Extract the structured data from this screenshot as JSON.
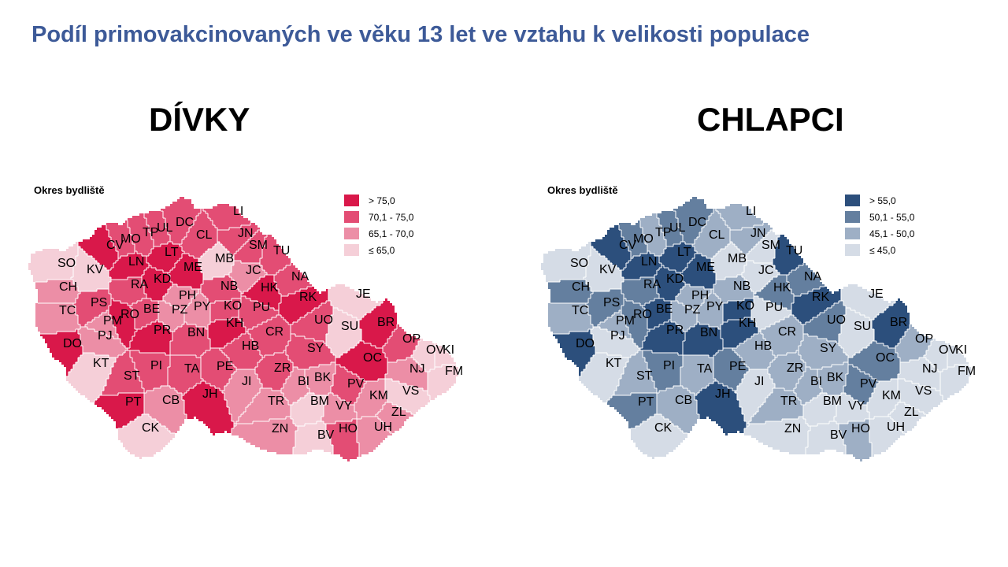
{
  "title": "Podíl primovakcinovaných ve věku 13 let ve vztahu k velikosti populace",
  "panels": [
    {
      "heading": "DÍVKY",
      "map_label": "Okres bydliště",
      "legend": [
        {
          "label": "> 75,0",
          "color": "#d9184a"
        },
        {
          "label": "70,1 - 75,0",
          "color": "#e34d74"
        },
        {
          "label": "65,1 - 70,0",
          "color": "#ec8ea6"
        },
        {
          "label": "≤ 65,0",
          "color": "#f5cfd8"
        }
      ]
    },
    {
      "heading": "CHLAPCI",
      "map_label": "Okres bydliště",
      "legend": [
        {
          "label": "> 55,0",
          "color": "#2c4f7c"
        },
        {
          "label": "50,1 - 55,0",
          "color": "#647f9f"
        },
        {
          "label": "45,1 - 50,0",
          "color": "#9eafc5"
        },
        {
          "label": "≤ 45,0",
          "color": "#d5dce6"
        }
      ]
    }
  ],
  "districts": [
    "SO",
    "KV",
    "CV",
    "MO",
    "TP",
    "UL",
    "DC",
    "LI",
    "CL",
    "JN",
    "SM",
    "LT",
    "LN",
    "ME",
    "MB",
    "JC",
    "TU",
    "CH",
    "RA",
    "KD",
    "PH",
    "NB",
    "HK",
    "NA",
    "RK",
    "JE",
    "PS",
    "BE",
    "PZ",
    "PY",
    "KO",
    "PU",
    "TC",
    "RO",
    "PM",
    "PJ",
    "PR",
    "BN",
    "KH",
    "CR",
    "UO",
    "SU",
    "BR",
    "OP",
    "DO",
    "HB",
    "SY",
    "OV",
    "KI",
    "OC",
    "NJ",
    "FM",
    "KT",
    "ST",
    "PI",
    "TA",
    "PE",
    "ZR",
    "JI",
    "BI",
    "BK",
    "PV",
    "KM",
    "VS",
    "PT",
    "CB",
    "JH",
    "TR",
    "BM",
    "VY",
    "ZL",
    "CK",
    "ZN",
    "BV",
    "HO",
    "UH"
  ],
  "classes": {
    "divky": {
      "SO": 4,
      "KV": 4,
      "CV": 1,
      "MO": 2,
      "TP": 2,
      "UL": 2,
      "DC": 2,
      "LI": 2,
      "CL": 2,
      "JN": 2,
      "SM": 2,
      "LT": 1,
      "LN": 1,
      "ME": 1,
      "MB": 4,
      "JC": 3,
      "TU": 2,
      "CH": 3,
      "RA": 2,
      "KD": 1,
      "PH": 3,
      "NB": 2,
      "HK": 1,
      "NA": 2,
      "RK": 1,
      "JE": 4,
      "PS": 2,
      "BE": 2,
      "PZ": 3,
      "PY": 3,
      "KO": 2,
      "PU": 2,
      "TC": 3,
      "RO": 1,
      "PM": 3,
      "PJ": 3,
      "PR": 1,
      "BN": 2,
      "KH": 1,
      "CR": 2,
      "UO": 2,
      "SU": 4,
      "BR": 1,
      "OP": 2,
      "DO": 1,
      "HB": 2,
      "SY": 2,
      "OV": 4,
      "KI": 4,
      "OC": 1,
      "NJ": 3,
      "FM": 4,
      "KT": 4,
      "ST": 2,
      "PI": 2,
      "TA": 2,
      "PE": 2,
      "ZR": 2,
      "JI": 3,
      "BI": 3,
      "BK": 3,
      "PV": 2,
      "KM": 3,
      "VS": 4,
      "PT": 1,
      "CB": 3,
      "JH": 1,
      "TR": 3,
      "BM": 4,
      "VY": 3,
      "ZL": 3,
      "CK": 4,
      "ZN": 3,
      "BV": 4,
      "HO": 2,
      "UH": 3
    },
    "chlapci": {
      "SO": 4,
      "KV": 4,
      "CV": 1,
      "MO": 2,
      "TP": 3,
      "UL": 2,
      "DC": 2,
      "LI": 3,
      "CL": 3,
      "JN": 3,
      "SM": 4,
      "LT": 1,
      "LN": 1,
      "ME": 1,
      "MB": 4,
      "JC": 4,
      "TU": 1,
      "CH": 2,
      "RA": 2,
      "KD": 1,
      "PH": 3,
      "NB": 3,
      "HK": 2,
      "NA": 2,
      "RK": 1,
      "JE": 4,
      "PS": 2,
      "BE": 1,
      "PZ": 3,
      "PY": 3,
      "KO": 1,
      "PU": 4,
      "TC": 3,
      "RO": 2,
      "PM": 3,
      "PJ": 4,
      "PR": 1,
      "BN": 1,
      "KH": 1,
      "CR": 3,
      "UO": 2,
      "SU": 4,
      "BR": 1,
      "OP": 3,
      "DO": 1,
      "HB": 3,
      "SY": 3,
      "OV": 4,
      "KI": 4,
      "OC": 2,
      "NJ": 4,
      "FM": 4,
      "KT": 4,
      "ST": 3,
      "PI": 2,
      "TA": 3,
      "PE": 2,
      "ZR": 3,
      "JI": 4,
      "BI": 3,
      "BK": 3,
      "PV": 2,
      "KM": 4,
      "VS": 4,
      "PT": 2,
      "CB": 3,
      "JH": 1,
      "TR": 3,
      "BM": 4,
      "VY": 4,
      "ZL": 4,
      "CK": 4,
      "ZN": 4,
      "BV": 4,
      "HO": 3,
      "UH": 4
    }
  }
}
